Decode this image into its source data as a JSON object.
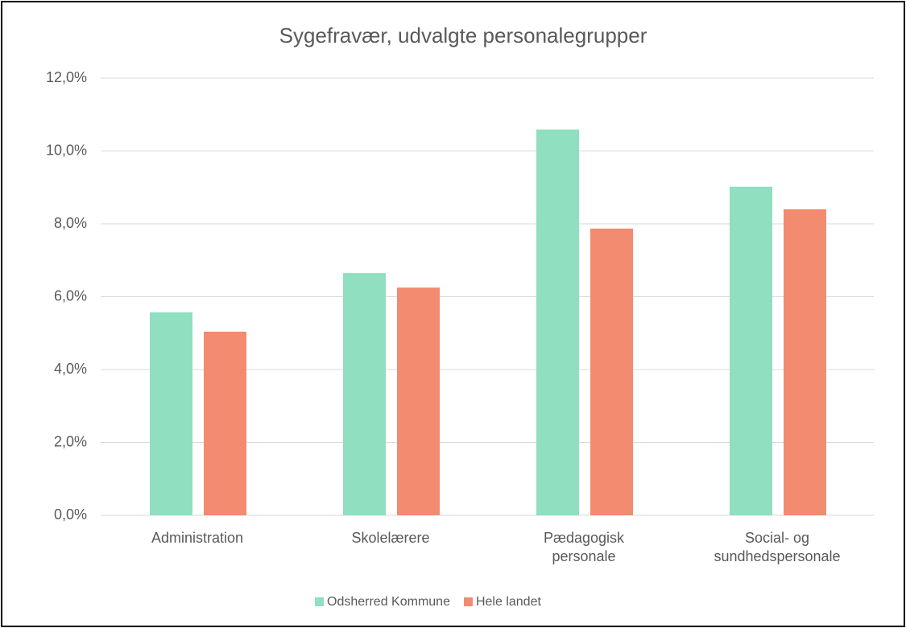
{
  "chart_data": {
    "type": "bar",
    "title": "Sygefravær, udvalgte personalegrupper",
    "categories": [
      "Administration",
      "Skolelærere",
      "Pædagogisk personale",
      "Social- og sundhedspersonale"
    ],
    "series": [
      {
        "name": "Odsherred Kommune",
        "color": "#8fdfc0",
        "values": [
          5.57,
          6.65,
          10.59,
          9.02
        ]
      },
      {
        "name": "Hele landet",
        "color": "#f28b70",
        "values": [
          5.04,
          6.25,
          7.87,
          8.4
        ]
      }
    ],
    "ylim": [
      0,
      12
    ],
    "yticks": [
      {
        "value": 0,
        "label": "0,0%"
      },
      {
        "value": 2,
        "label": "2,0%"
      },
      {
        "value": 4,
        "label": "4,0%"
      },
      {
        "value": 6,
        "label": "6,0%"
      },
      {
        "value": 8,
        "label": "8,0%"
      },
      {
        "value": 10,
        "label": "10,0%"
      },
      {
        "value": 12,
        "label": "12,0%"
      }
    ],
    "grid": true,
    "legend": "bottom"
  }
}
